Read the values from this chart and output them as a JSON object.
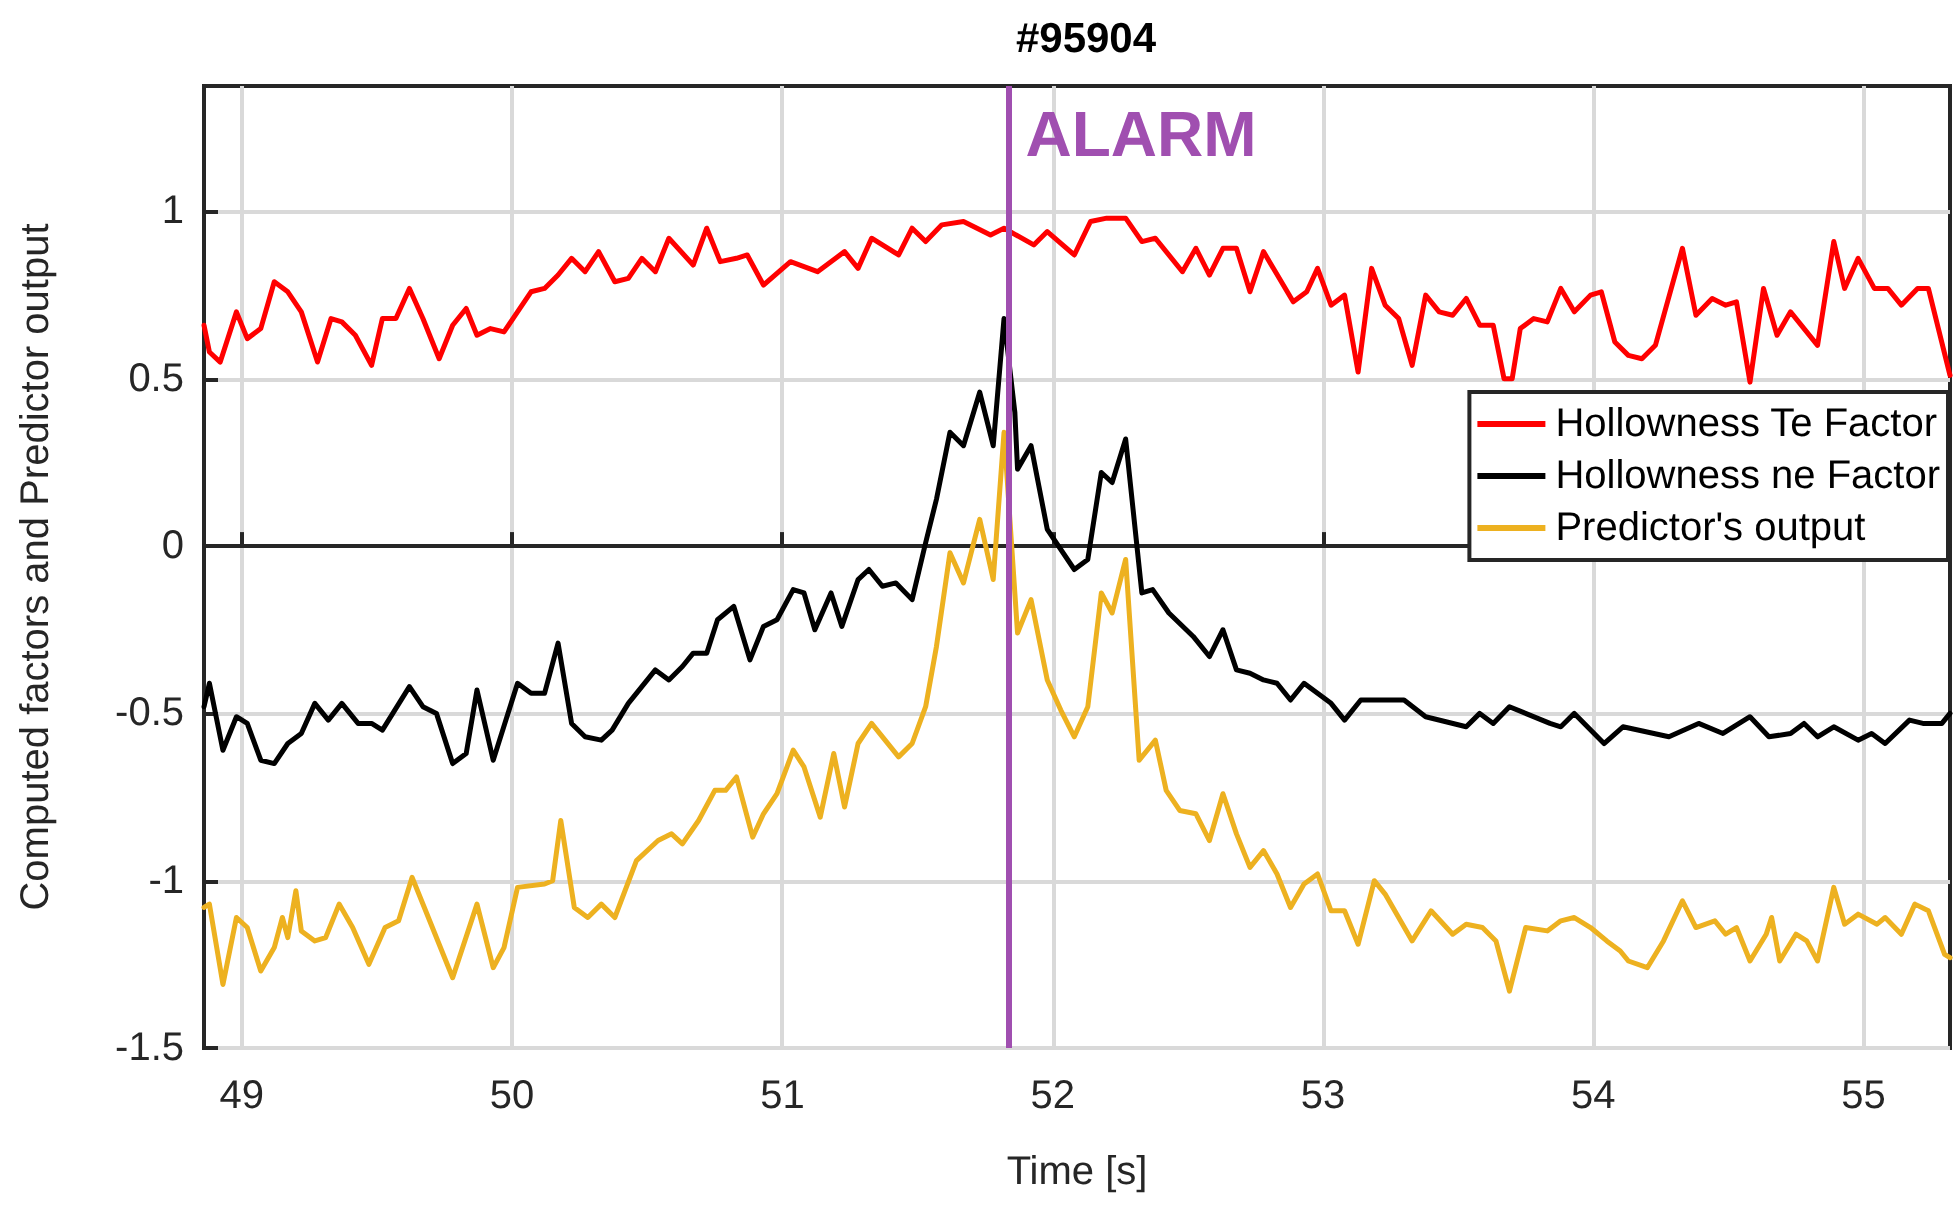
{
  "chart_data": {
    "type": "line",
    "title": "#95904",
    "xlabel": "Time [s]",
    "ylabel": "Computed factors and Predictor output",
    "xlim": [
      48.86,
      55.32
    ],
    "xticks": [
      49,
      50,
      51,
      52,
      53,
      54,
      55
    ],
    "ylim": [
      -1.5,
      1.375
    ],
    "yticks": [
      -1.5,
      -1,
      -0.5,
      0,
      0.5,
      1
    ],
    "grid": true,
    "legend": "right",
    "marker": "none",
    "line_style": "solid",
    "ref_lines": [
      {
        "axis": "x",
        "value": 51.84,
        "label": "ALARM",
        "color": "#a04fb0"
      }
    ],
    "series": [
      {
        "name": "Hollowness Te Factor",
        "color": "#ff0000",
        "x": [
          48.86,
          48.88,
          48.92,
          48.98,
          49.02,
          49.07,
          49.12,
          49.17,
          49.22,
          49.28,
          49.33,
          49.37,
          49.42,
          49.48,
          49.52,
          49.57,
          49.62,
          49.67,
          49.73,
          49.78,
          49.83,
          49.87,
          49.92,
          49.97,
          50.02,
          50.07,
          50.12,
          50.17,
          50.22,
          50.27,
          50.32,
          50.38,
          50.43,
          50.48,
          50.53,
          50.58,
          50.67,
          50.72,
          50.77,
          50.83,
          50.87,
          50.93,
          51.03,
          51.13,
          51.23,
          51.28,
          51.33,
          51.43,
          51.48,
          51.53,
          51.59,
          51.67,
          51.77,
          51.82,
          51.93,
          51.98,
          52.08,
          52.14,
          52.2,
          52.27,
          52.33,
          52.38,
          52.48,
          52.53,
          52.58,
          52.63,
          52.68,
          52.73,
          52.78,
          52.89,
          52.94,
          52.98,
          53.03,
          53.08,
          53.13,
          53.18,
          53.23,
          53.28,
          53.33,
          53.38,
          53.43,
          53.48,
          53.53,
          53.58,
          53.63,
          53.67,
          53.7,
          53.73,
          53.78,
          53.83,
          53.88,
          53.93,
          53.99,
          54.03,
          54.08,
          54.13,
          54.18,
          54.23,
          54.33,
          54.38,
          54.44,
          54.49,
          54.53,
          54.58,
          54.63,
          54.68,
          54.73,
          54.83,
          54.89,
          54.93,
          54.98,
          55.04,
          55.09,
          55.14,
          55.2,
          55.24,
          55.32
        ],
        "values": [
          0.66,
          0.58,
          0.55,
          0.7,
          0.62,
          0.65,
          0.79,
          0.76,
          0.7,
          0.55,
          0.68,
          0.67,
          0.63,
          0.54,
          0.68,
          0.68,
          0.77,
          0.68,
          0.56,
          0.66,
          0.71,
          0.63,
          0.65,
          0.64,
          0.7,
          0.76,
          0.77,
          0.81,
          0.86,
          0.82,
          0.88,
          0.79,
          0.8,
          0.86,
          0.82,
          0.92,
          0.84,
          0.95,
          0.85,
          0.86,
          0.87,
          0.78,
          0.85,
          0.82,
          0.88,
          0.83,
          0.92,
          0.87,
          0.95,
          0.91,
          0.96,
          0.97,
          0.93,
          0.95,
          0.9,
          0.94,
          0.87,
          0.97,
          0.98,
          0.98,
          0.91,
          0.92,
          0.82,
          0.89,
          0.81,
          0.89,
          0.89,
          0.76,
          0.88,
          0.73,
          0.76,
          0.83,
          0.72,
          0.75,
          0.52,
          0.83,
          0.72,
          0.68,
          0.54,
          0.75,
          0.7,
          0.69,
          0.74,
          0.66,
          0.66,
          0.5,
          0.5,
          0.65,
          0.68,
          0.67,
          0.77,
          0.7,
          0.75,
          0.76,
          0.61,
          0.57,
          0.56,
          0.6,
          0.89,
          0.69,
          0.74,
          0.72,
          0.73,
          0.49,
          0.77,
          0.63,
          0.7,
          0.6,
          0.91,
          0.77,
          0.86,
          0.77,
          0.77,
          0.72,
          0.77,
          0.77,
          0.51
        ]
      },
      {
        "name": "Hollowness ne Factor",
        "color": "#000000",
        "x": [
          48.86,
          48.88,
          48.93,
          48.98,
          49.02,
          49.07,
          49.12,
          49.17,
          49.22,
          49.27,
          49.32,
          49.37,
          49.43,
          49.48,
          49.52,
          49.62,
          49.67,
          49.72,
          49.78,
          49.83,
          49.87,
          49.93,
          50.02,
          50.07,
          50.12,
          50.17,
          50.22,
          50.27,
          50.33,
          50.37,
          50.43,
          50.53,
          50.58,
          50.63,
          50.67,
          50.72,
          50.76,
          50.82,
          50.88,
          50.93,
          50.98,
          51.04,
          51.08,
          51.12,
          51.18,
          51.22,
          51.28,
          51.32,
          51.37,
          51.42,
          51.48,
          51.53,
          51.57,
          51.62,
          51.67,
          51.73,
          51.78,
          51.82,
          51.86,
          51.87,
          51.92,
          51.98,
          52.08,
          52.13,
          52.18,
          52.22,
          52.27,
          52.33,
          52.37,
          52.43,
          52.52,
          52.58,
          52.63,
          52.68,
          52.73,
          52.78,
          52.83,
          52.88,
          52.93,
          53.03,
          53.08,
          53.14,
          53.3,
          53.38,
          53.53,
          53.58,
          53.63,
          53.69,
          53.84,
          53.88,
          53.93,
          54.04,
          54.11,
          54.28,
          54.39,
          54.48,
          54.58,
          54.65,
          54.73,
          54.78,
          54.83,
          54.89,
          54.98,
          55.03,
          55.08,
          55.17,
          55.22,
          55.29,
          55.32
        ],
        "values": [
          -0.48,
          -0.41,
          -0.61,
          -0.51,
          -0.53,
          -0.64,
          -0.65,
          -0.59,
          -0.56,
          -0.47,
          -0.52,
          -0.47,
          -0.53,
          -0.53,
          -0.55,
          -0.42,
          -0.48,
          -0.5,
          -0.65,
          -0.62,
          -0.43,
          -0.64,
          -0.41,
          -0.44,
          -0.44,
          -0.29,
          -0.53,
          -0.57,
          -0.58,
          -0.55,
          -0.47,
          -0.37,
          -0.4,
          -0.36,
          -0.32,
          -0.32,
          -0.22,
          -0.18,
          -0.34,
          -0.24,
          -0.22,
          -0.13,
          -0.14,
          -0.25,
          -0.14,
          -0.24,
          -0.1,
          -0.07,
          -0.12,
          -0.11,
          -0.16,
          0.01,
          0.14,
          0.34,
          0.3,
          0.46,
          0.3,
          0.68,
          0.4,
          0.23,
          0.3,
          0.05,
          -0.07,
          -0.04,
          0.22,
          0.19,
          0.32,
          -0.14,
          -0.13,
          -0.2,
          -0.27,
          -0.33,
          -0.25,
          -0.37,
          -0.38,
          -0.4,
          -0.41,
          -0.46,
          -0.41,
          -0.47,
          -0.52,
          -0.46,
          -0.46,
          -0.51,
          -0.54,
          -0.5,
          -0.53,
          -0.48,
          -0.53,
          -0.54,
          -0.5,
          -0.59,
          -0.54,
          -0.57,
          -0.53,
          -0.56,
          -0.51,
          -0.57,
          -0.56,
          -0.53,
          -0.57,
          -0.54,
          -0.58,
          -0.56,
          -0.59,
          -0.52,
          -0.53,
          -0.53,
          -0.5
        ]
      },
      {
        "name": "Predictor's output",
        "color": "#edb120",
        "x": [
          48.86,
          48.88,
          48.93,
          48.98,
          49.02,
          49.07,
          49.12,
          49.15,
          49.17,
          49.2,
          49.22,
          49.27,
          49.31,
          49.36,
          49.41,
          49.47,
          49.53,
          49.58,
          49.63,
          49.68,
          49.78,
          49.87,
          49.93,
          49.97,
          50.02,
          50.12,
          50.15,
          50.18,
          50.23,
          50.28,
          50.33,
          50.38,
          50.46,
          50.54,
          50.59,
          50.63,
          50.69,
          50.75,
          50.79,
          50.83,
          50.89,
          50.93,
          50.98,
          51.04,
          51.08,
          51.14,
          51.19,
          51.23,
          51.28,
          51.33,
          51.43,
          51.48,
          51.53,
          51.57,
          51.62,
          51.67,
          51.73,
          51.78,
          51.82,
          51.87,
          51.92,
          51.98,
          52.03,
          52.08,
          52.13,
          52.18,
          52.22,
          52.27,
          52.32,
          52.38,
          52.42,
          52.47,
          52.53,
          52.58,
          52.63,
          52.68,
          52.73,
          52.78,
          52.83,
          52.88,
          52.93,
          52.98,
          53.03,
          53.08,
          53.13,
          53.19,
          53.23,
          53.33,
          53.4,
          53.48,
          53.53,
          53.59,
          53.64,
          53.69,
          53.75,
          53.83,
          53.88,
          53.93,
          53.99,
          54.05,
          54.1,
          54.13,
          54.2,
          54.26,
          54.33,
          54.38,
          54.45,
          54.49,
          54.53,
          54.58,
          54.64,
          54.66,
          54.69,
          54.75,
          54.79,
          54.83,
          54.89,
          54.93,
          54.98,
          55.05,
          55.08,
          55.14,
          55.19,
          55.24,
          55.3,
          55.32
        ],
        "values": [
          -1.08,
          -1.07,
          -1.31,
          -1.11,
          -1.14,
          -1.27,
          -1.2,
          -1.11,
          -1.17,
          -1.03,
          -1.15,
          -1.18,
          -1.17,
          -1.07,
          -1.14,
          -1.25,
          -1.14,
          -1.12,
          -0.99,
          -1.09,
          -1.29,
          -1.07,
          -1.26,
          -1.2,
          -1.02,
          -1.01,
          -1.0,
          -0.82,
          -1.08,
          -1.11,
          -1.07,
          -1.11,
          -0.94,
          -0.88,
          -0.86,
          -0.89,
          -0.82,
          -0.73,
          -0.73,
          -0.69,
          -0.87,
          -0.8,
          -0.74,
          -0.61,
          -0.66,
          -0.81,
          -0.62,
          -0.78,
          -0.59,
          -0.53,
          -0.63,
          -0.59,
          -0.48,
          -0.3,
          -0.02,
          -0.11,
          0.08,
          -0.1,
          0.34,
          -0.26,
          -0.16,
          -0.4,
          -0.49,
          -0.57,
          -0.48,
          -0.14,
          -0.2,
          -0.04,
          -0.64,
          -0.58,
          -0.73,
          -0.79,
          -0.8,
          -0.88,
          -0.74,
          -0.86,
          -0.96,
          -0.91,
          -0.98,
          -1.08,
          -1.01,
          -0.98,
          -1.09,
          -1.09,
          -1.19,
          -1.0,
          -1.04,
          -1.18,
          -1.09,
          -1.16,
          -1.13,
          -1.14,
          -1.18,
          -1.33,
          -1.14,
          -1.15,
          -1.12,
          -1.11,
          -1.14,
          -1.18,
          -1.21,
          -1.24,
          -1.26,
          -1.18,
          -1.06,
          -1.14,
          -1.12,
          -1.16,
          -1.14,
          -1.24,
          -1.16,
          -1.11,
          -1.24,
          -1.16,
          -1.18,
          -1.24,
          -1.02,
          -1.13,
          -1.1,
          -1.13,
          -1.11,
          -1.16,
          -1.07,
          -1.09,
          -1.22,
          -1.23
        ]
      }
    ]
  }
}
